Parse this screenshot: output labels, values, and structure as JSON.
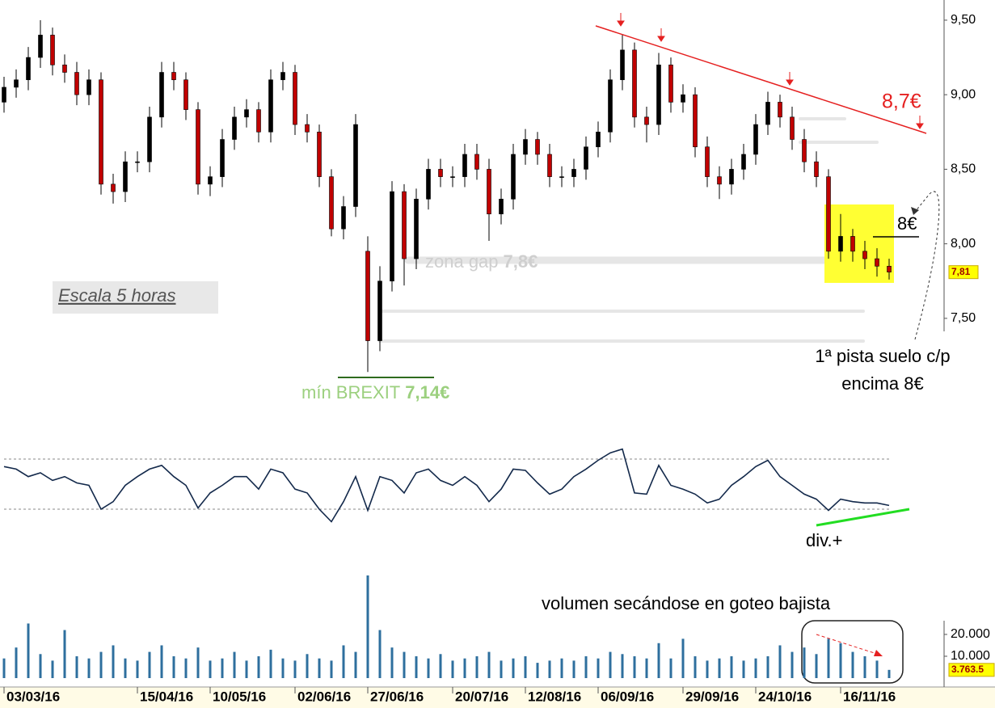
{
  "chart_data": [
    {
      "type": "candlestick",
      "categories": [
        "03/03/16",
        null,
        null,
        null,
        null,
        null,
        null,
        null,
        null,
        null,
        null,
        "15/04/16",
        null,
        null,
        null,
        null,
        null,
        "10/05/16",
        null,
        null,
        null,
        null,
        null,
        null,
        "02/06/16",
        null,
        null,
        null,
        null,
        null,
        "27/06/16",
        null,
        null,
        null,
        null,
        null,
        null,
        "20/07/16",
        null,
        null,
        null,
        null,
        null,
        "12/08/16",
        null,
        null,
        null,
        null,
        null,
        "06/09/16",
        null,
        null,
        null,
        null,
        null,
        null,
        "29/09/16",
        null,
        null,
        null,
        null,
        null,
        "24/10/16",
        null,
        null,
        null,
        null,
        null,
        null,
        "16/11/16",
        null,
        null,
        null,
        null
      ],
      "open": [
        8.95,
        9.05,
        9.1,
        9.25,
        9.4,
        9.2,
        9.15,
        9.0,
        9.1,
        8.4,
        8.35,
        8.55,
        8.55,
        8.85,
        9.15,
        9.1,
        8.9,
        8.4,
        8.45,
        8.7,
        8.85,
        8.9,
        8.75,
        9.1,
        9.15,
        8.8,
        8.75,
        8.45,
        8.1,
        8.25,
        7.95,
        7.35,
        7.75,
        8.35,
        7.9,
        8.3,
        8.5,
        8.45,
        8.45,
        8.6,
        8.5,
        8.2,
        8.3,
        8.6,
        8.7,
        8.6,
        8.45,
        8.45,
        8.5,
        8.65,
        8.75,
        9.1,
        9.3,
        8.85,
        8.8,
        9.2,
        8.95,
        9.0,
        8.65,
        8.45,
        8.4,
        8.5,
        8.6,
        8.8,
        8.95,
        8.85,
        8.7,
        8.55,
        8.45,
        7.95,
        8.05,
        7.95,
        7.9,
        7.85
      ],
      "high": [
        9.12,
        9.17,
        9.32,
        9.5,
        9.45,
        9.27,
        9.22,
        9.17,
        9.15,
        8.47,
        8.62,
        8.62,
        8.92,
        9.22,
        9.22,
        9.15,
        8.95,
        8.52,
        8.77,
        8.92,
        8.97,
        8.95,
        9.17,
        9.22,
        9.2,
        8.87,
        8.8,
        8.5,
        8.32,
        8.87,
        8.05,
        7.85,
        8.42,
        8.4,
        8.37,
        8.57,
        8.57,
        8.52,
        8.67,
        8.67,
        8.57,
        8.37,
        8.67,
        8.77,
        8.75,
        8.67,
        8.52,
        8.57,
        8.72,
        8.82,
        9.17,
        9.4,
        9.35,
        8.92,
        9.28,
        9.25,
        9.07,
        9.05,
        8.72,
        8.52,
        8.57,
        8.67,
        8.87,
        9.02,
        9.0,
        8.92,
        8.77,
        8.62,
        8.5,
        8.2,
        8.1,
        8.02,
        7.97,
        7.9
      ],
      "low": [
        8.88,
        8.98,
        9.03,
        9.18,
        9.13,
        9.08,
        8.93,
        8.93,
        8.33,
        8.27,
        8.28,
        8.48,
        8.48,
        8.78,
        9.03,
        8.83,
        8.33,
        8.32,
        8.38,
        8.63,
        8.78,
        8.68,
        8.68,
        9.03,
        8.73,
        8.68,
        8.38,
        8.05,
        8.03,
        8.18,
        7.14,
        7.28,
        7.68,
        7.72,
        7.83,
        8.23,
        8.38,
        8.38,
        8.38,
        8.43,
        8.02,
        8.13,
        8.23,
        8.53,
        8.53,
        8.38,
        8.38,
        8.38,
        8.43,
        8.58,
        8.68,
        9.03,
        8.78,
        8.68,
        8.73,
        8.88,
        8.88,
        8.58,
        8.38,
        8.3,
        8.33,
        8.43,
        8.53,
        8.73,
        8.78,
        8.63,
        8.48,
        8.38,
        7.9,
        7.88,
        7.88,
        7.83,
        7.78,
        7.76
      ],
      "close": [
        9.05,
        9.1,
        9.25,
        9.4,
        9.2,
        9.15,
        9.0,
        9.1,
        8.4,
        8.35,
        8.55,
        8.55,
        8.85,
        9.15,
        9.1,
        8.9,
        8.4,
        8.45,
        8.7,
        8.85,
        8.9,
        8.75,
        9.1,
        9.15,
        8.8,
        8.75,
        8.45,
        8.1,
        8.25,
        8.8,
        7.35,
        7.75,
        8.35,
        7.9,
        8.3,
        8.5,
        8.45,
        8.45,
        8.6,
        8.5,
        8.2,
        8.3,
        8.6,
        8.7,
        8.6,
        8.45,
        8.45,
        8.5,
        8.65,
        8.75,
        9.1,
        9.3,
        8.85,
        8.8,
        9.2,
        8.95,
        9.0,
        8.65,
        8.45,
        8.4,
        8.5,
        8.6,
        8.8,
        8.95,
        8.85,
        8.7,
        8.55,
        8.45,
        7.95,
        8.05,
        7.95,
        7.9,
        7.85,
        7.81
      ],
      "up_color": "#000000",
      "down_color": "#c00000",
      "ylim": [
        7.05,
        9.6
      ],
      "yticks": [
        {
          "value": 9.5,
          "label": "9,50"
        },
        {
          "value": 9.0,
          "label": "9,00"
        },
        {
          "value": 8.5,
          "label": "8,50"
        },
        {
          "value": 8.0,
          "label": "8,00"
        },
        {
          "value": 7.5,
          "label": "7,50"
        }
      ],
      "last_value_label": {
        "value": 7.81,
        "label": "7,81"
      },
      "annotations": {
        "scale_note": "Escala 5 horas",
        "gap_zone": "zona gap",
        "gap_zone_value": "7,8€",
        "brexit_low": "mín BREXIT",
        "brexit_low_value": "7,14€",
        "trend_target": "8,7€",
        "level": "8€",
        "floor_line1": "1ª pista suelo c/p",
        "floor_line2": "encima 8€"
      }
    },
    {
      "type": "line",
      "values": [
        64,
        62,
        56,
        59,
        53,
        56,
        51,
        49,
        30,
        36,
        49,
        56,
        62,
        65,
        56,
        49,
        31,
        43,
        49,
        56,
        56,
        46,
        62,
        59,
        46,
        43,
        30,
        20,
        36,
        56,
        29,
        56,
        53,
        43,
        59,
        62,
        53,
        49,
        56,
        49,
        36,
        46,
        62,
        61,
        51,
        42,
        46,
        56,
        62,
        69,
        75,
        78,
        43,
        42,
        65,
        49,
        46,
        42,
        35,
        38,
        49,
        56,
        64,
        69,
        56,
        49,
        42,
        38,
        29,
        38,
        36,
        35,
        35,
        33
      ],
      "color": "#13294b",
      "ylim": [
        0,
        100
      ],
      "levels": [
        30,
        70
      ],
      "annotation": "div.+"
    },
    {
      "type": "bar",
      "values": [
        9000,
        14000,
        25000,
        11000,
        8000,
        22000,
        10000,
        9000,
        12000,
        15000,
        9000,
        8000,
        12000,
        15000,
        10000,
        9000,
        14000,
        8000,
        9000,
        12000,
        8000,
        10000,
        13000,
        9000,
        8000,
        11000,
        9000,
        8000,
        15000,
        12000,
        47000,
        22000,
        14000,
        12000,
        10000,
        9000,
        11000,
        8000,
        9000,
        10000,
        12000,
        8000,
        9000,
        10000,
        7000,
        8000,
        9000,
        8000,
        10000,
        9000,
        12000,
        11000,
        10000,
        9000,
        16000,
        9000,
        18000,
        10000,
        8000,
        9000,
        10000,
        8000,
        9000,
        10000,
        15000,
        12000,
        14000,
        11000,
        18000,
        16000,
        12000,
        10000,
        8000,
        3763.5
      ],
      "color": "#2e6f9e",
      "ylim": [
        0,
        47000
      ],
      "yticks": [
        {
          "value": 20000,
          "label": "20.000"
        },
        {
          "value": 10000,
          "label": "10.000"
        }
      ],
      "last_value_label": {
        "value": 3763.5,
        "label": "3.763.5"
      },
      "annotation": "volumen secándose en goteo bajista"
    }
  ]
}
